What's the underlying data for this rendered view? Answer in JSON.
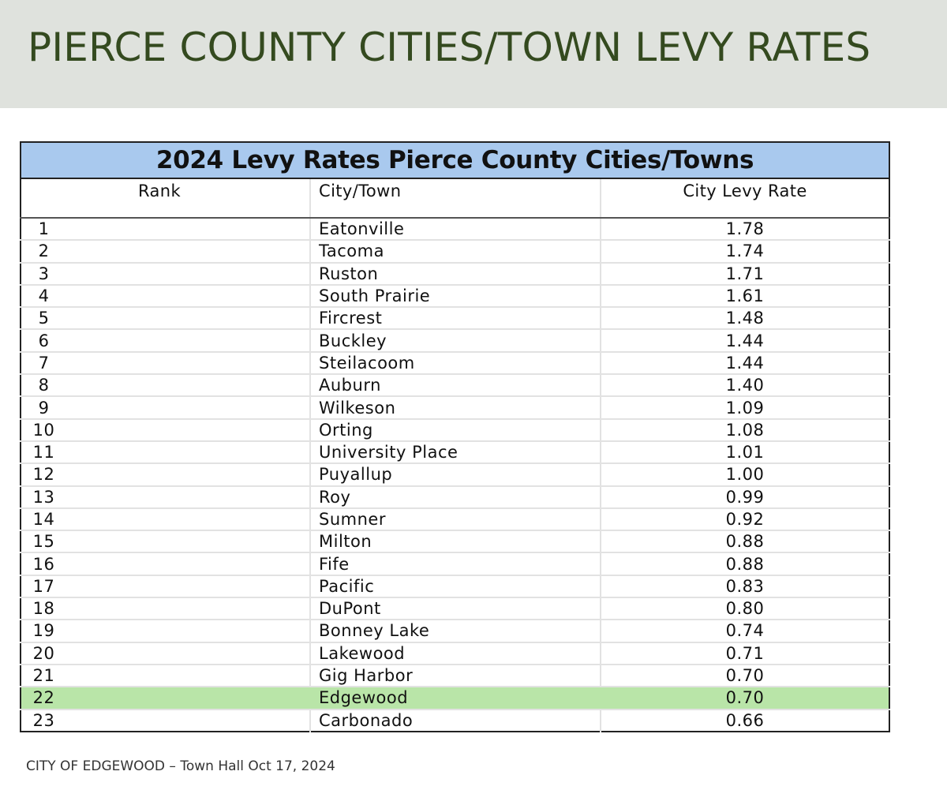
{
  "slide": {
    "title": "PIERCE COUNTY CITIES/TOWN LEVY RATES",
    "footer": "CITY OF EDGEWOOD – Town Hall Oct 17, 2024",
    "band_color": "#dfe2dd",
    "title_color": "#344a1f"
  },
  "table": {
    "caption": "2024 Levy Rates Pierce County Cities/Towns",
    "caption_color": "#a9c9ee",
    "highlight_color": "#b9e5a8",
    "columns": [
      "Rank",
      "City/Town",
      "City Levy Rate"
    ],
    "rows": [
      {
        "rank": "1",
        "city": "Eatonville",
        "rate": "1.78"
      },
      {
        "rank": "2",
        "city": "Tacoma",
        "rate": "1.74"
      },
      {
        "rank": "3",
        "city": "Ruston",
        "rate": "1.71"
      },
      {
        "rank": "4",
        "city": "South Prairie",
        "rate": "1.61"
      },
      {
        "rank": "5",
        "city": "Fircrest",
        "rate": "1.48"
      },
      {
        "rank": "6",
        "city": "Buckley",
        "rate": "1.44"
      },
      {
        "rank": "7",
        "city": "Steilacoom",
        "rate": "1.44"
      },
      {
        "rank": "8",
        "city": "Auburn",
        "rate": "1.40"
      },
      {
        "rank": "9",
        "city": "Wilkeson",
        "rate": "1.09"
      },
      {
        "rank": "10",
        "city": "Orting",
        "rate": "1.08"
      },
      {
        "rank": "11",
        "city": "University Place",
        "rate": "1.01"
      },
      {
        "rank": "12",
        "city": "Puyallup",
        "rate": "1.00"
      },
      {
        "rank": "13",
        "city": "Roy",
        "rate": "0.99"
      },
      {
        "rank": "14",
        "city": "Sumner",
        "rate": "0.92"
      },
      {
        "rank": "15",
        "city": "Milton",
        "rate": "0.88"
      },
      {
        "rank": "16",
        "city": "Fife",
        "rate": "0.88"
      },
      {
        "rank": "17",
        "city": "Pacific",
        "rate": "0.83"
      },
      {
        "rank": "18",
        "city": "DuPont",
        "rate": "0.80"
      },
      {
        "rank": "19",
        "city": "Bonney Lake",
        "rate": "0.74"
      },
      {
        "rank": "20",
        "city": "Lakewood",
        "rate": "0.71"
      },
      {
        "rank": "21",
        "city": "Gig Harbor",
        "rate": "0.70"
      },
      {
        "rank": "22",
        "city": "Edgewood",
        "rate": "0.70",
        "highlighted": true
      },
      {
        "rank": "23",
        "city": "Carbonado",
        "rate": "0.66"
      }
    ]
  }
}
